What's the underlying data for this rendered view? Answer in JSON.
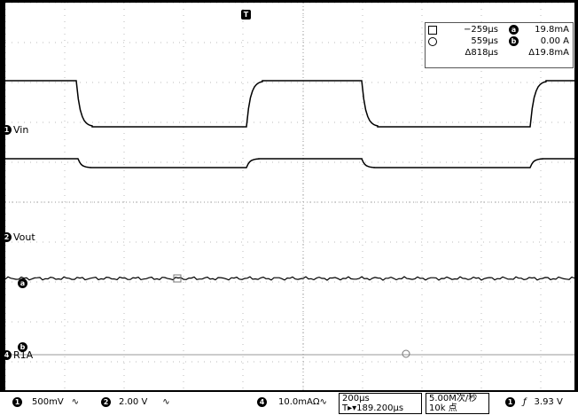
{
  "channels": {
    "ch1": {
      "badge": "1",
      "name": "Vin"
    },
    "ch2": {
      "badge": "2",
      "name": "Vout"
    },
    "math_a": {
      "badge": "a"
    },
    "ref4": {
      "badge": "4",
      "name": "R1A"
    },
    "math_b": {
      "badge": "b"
    }
  },
  "trigger_marker": "T",
  "cursors": {
    "cursor1_time": "−259µs",
    "cursor2_time": "559µs",
    "delta_time": "Δ818µs",
    "badge_a": "a",
    "badge_b": "b",
    "cursor1_value": "19.8mA",
    "cursor2_value": "0.00 A",
    "delta_value": "Δ19.8mA"
  },
  "status_bar": {
    "ch1_badge": "1",
    "ch1_scale": "500mV",
    "ch1_bw": "∿",
    "ch2_badge": "2",
    "ch2_scale": "2.00 V",
    "ch2_bw": "∿",
    "ch4_badge": "4",
    "ch4_scale": "10.0mAΩ∿",
    "timebase": "200µs",
    "trigger_pos": "T▸▾189.200µs",
    "sample_rate": "5.00M次/秒",
    "record_length": "10k 点",
    "trig_badge": "1",
    "trig_slope": "ƒ",
    "trig_level": "3.93 V"
  }
}
